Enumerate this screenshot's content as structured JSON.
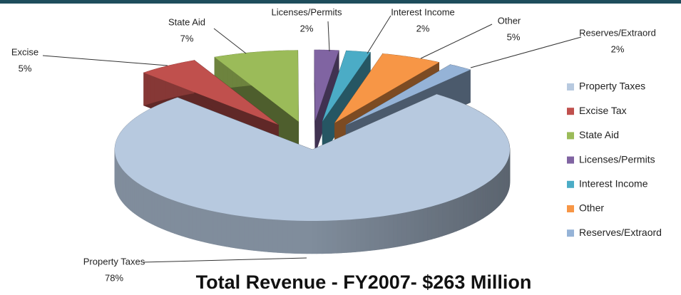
{
  "chart_data": {
    "type": "pie",
    "title": "Total Revenue - FY2007- $263 Million",
    "categories": [
      "Property Taxes",
      "Excise Tax",
      "State Aid",
      "Licenses/Permits",
      "Interest Income",
      "Other",
      "Reserves/Extraord"
    ],
    "labels": [
      "Property Taxes",
      "Excise",
      "State Aid",
      "Licenses/Permits",
      "Interest Income",
      "Other",
      "Reserves/Extraord"
    ],
    "values": [
      78,
      5,
      7,
      2,
      2,
      5,
      2
    ],
    "value_labels": [
      "78%",
      "5%",
      "7%",
      "2%",
      "2%",
      "5%",
      "2%"
    ],
    "colors": [
      "#b7c9df",
      "#c0504d",
      "#9bbb59",
      "#8064a2",
      "#4bacc6",
      "#f79646",
      "#95b3d7"
    ],
    "legend": "right"
  }
}
